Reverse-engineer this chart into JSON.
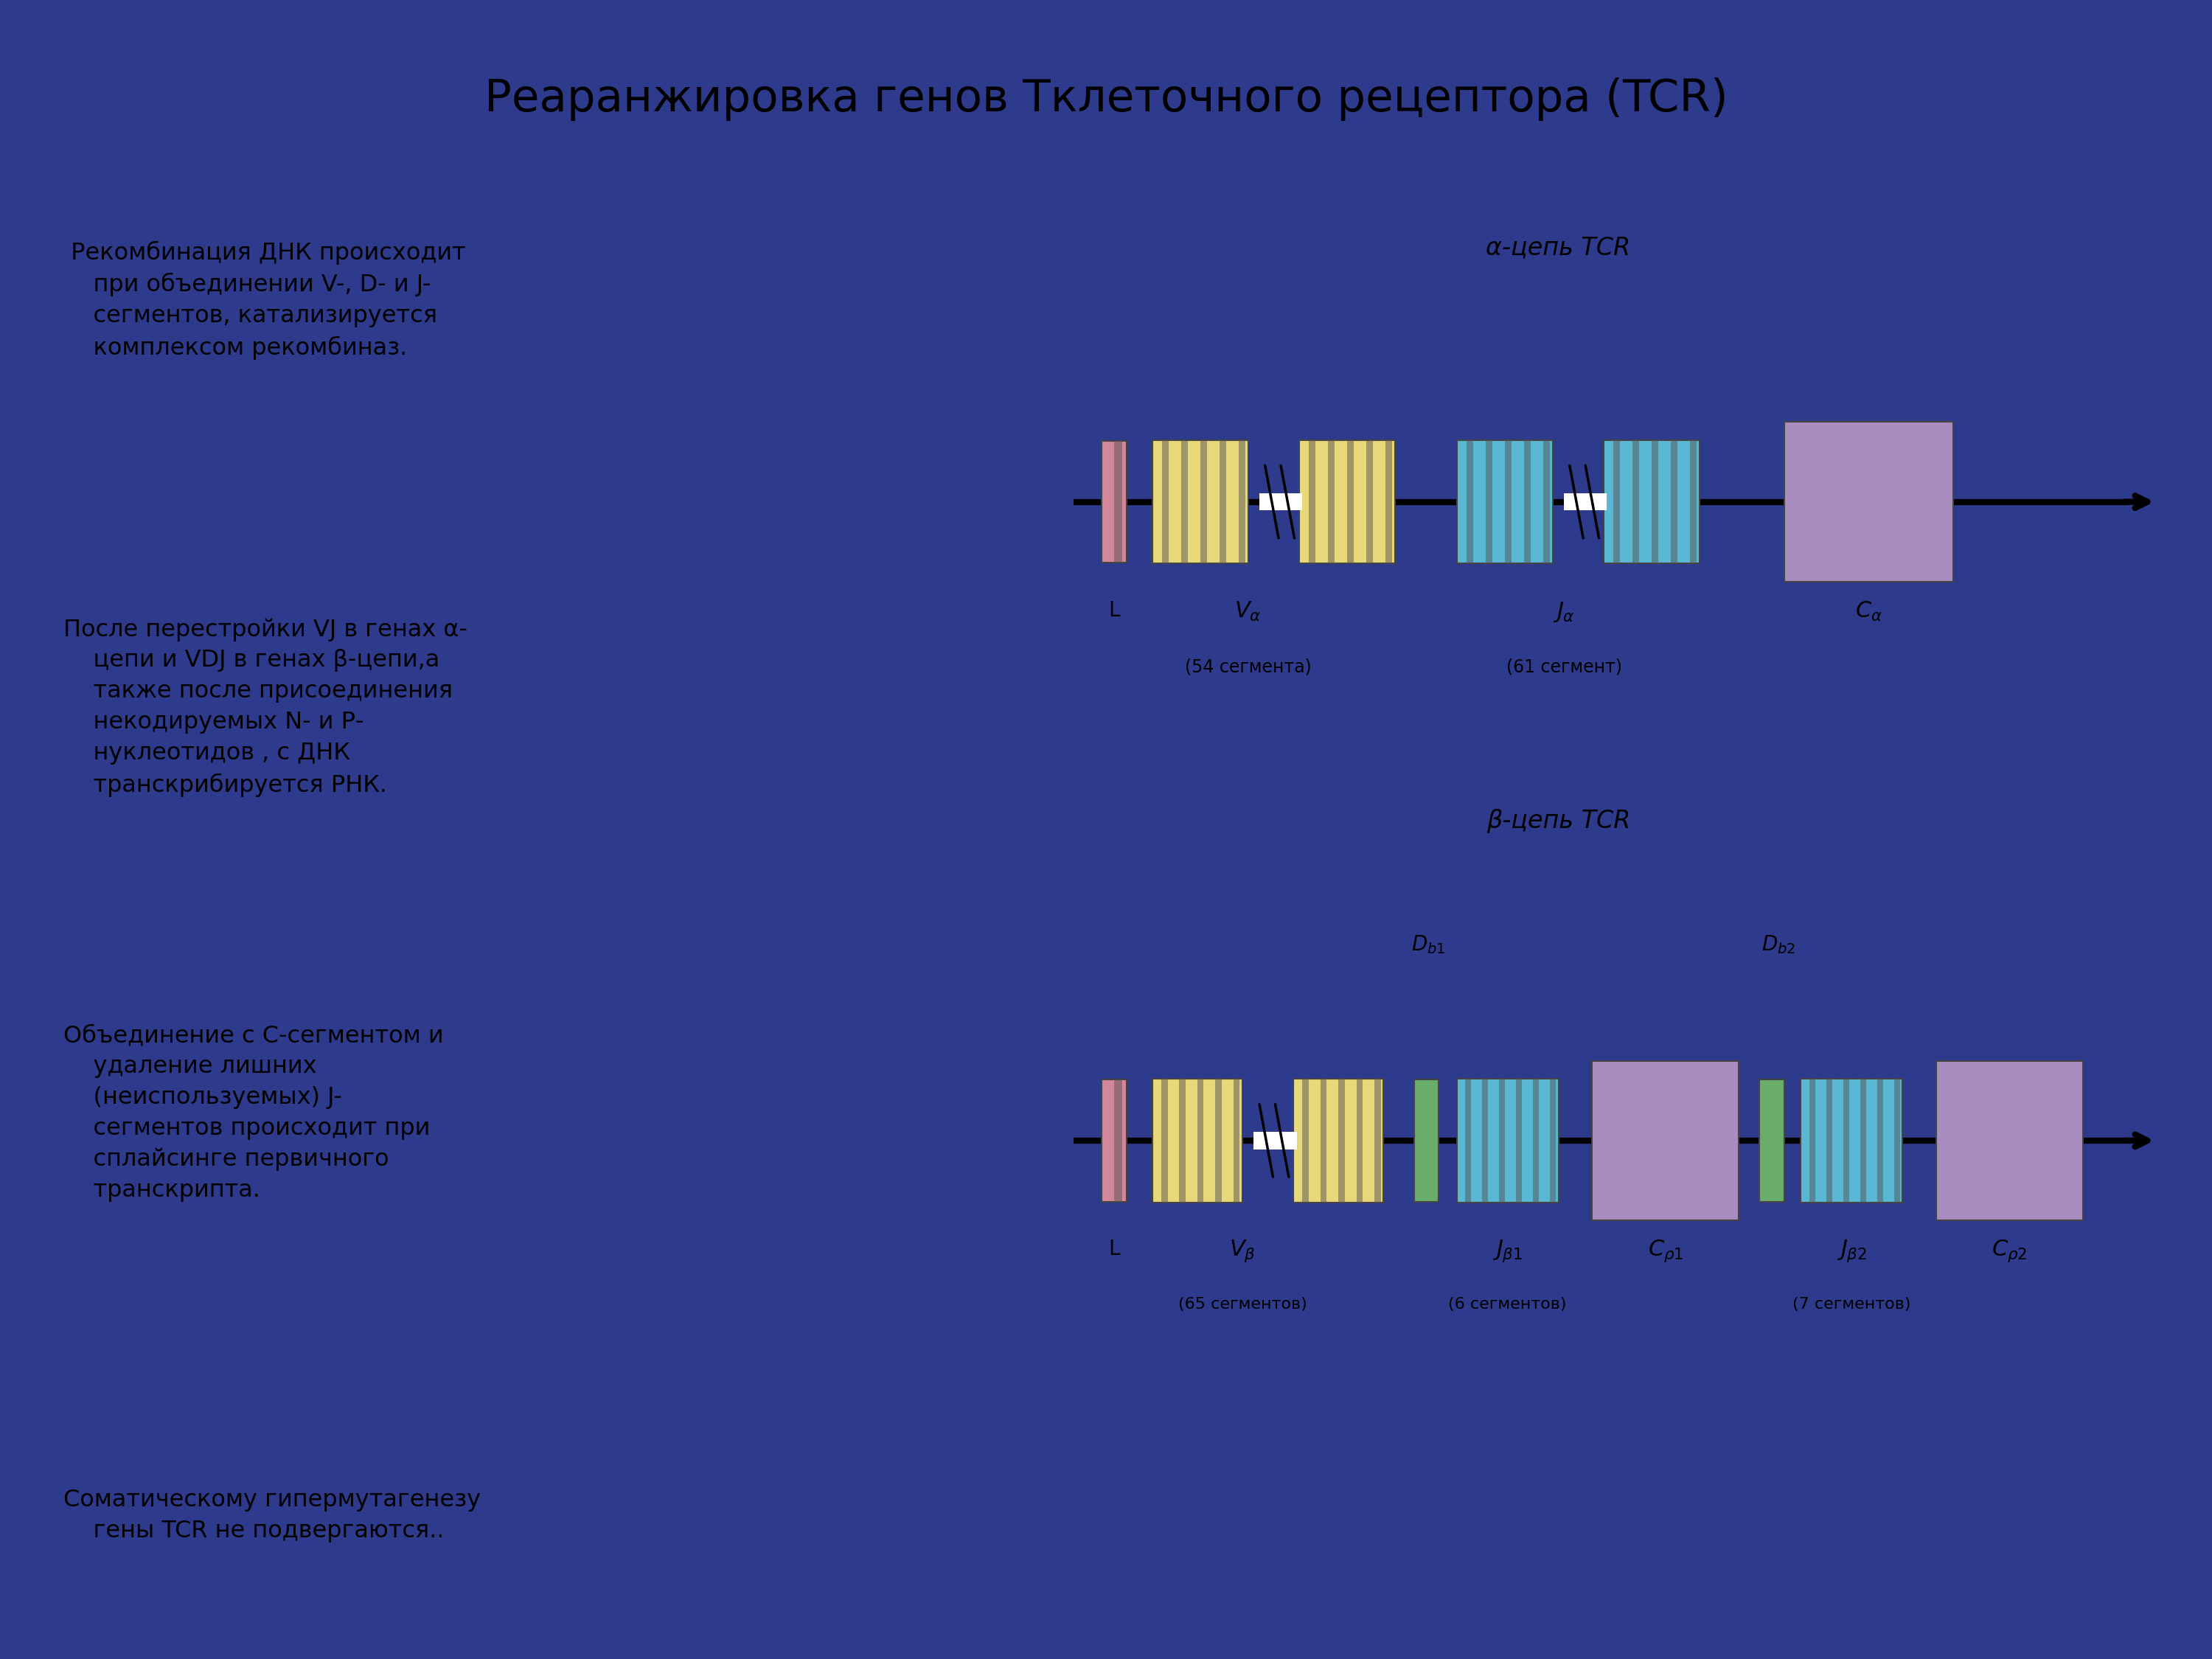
{
  "title": "Реаранжировка генов Тклеточного рецептора (TCR)",
  "title_bg": "#F5B731",
  "title_color": "#000000",
  "bg_color": "#2E3B8C",
  "left_bg": "#F5B731",
  "right_bg": "#FFFFFF",
  "left_text_color": "#000000",
  "left_paragraphs": [
    " Рекомбинация ДНК происходит\n    при объединении V-, D- и J-\n    сегментов, катализируется\n    комплексом рекомбиназ.",
    "После перестройки VJ в генах α-\n    цепи и VDJ в генах β-цепи,а\n    также после присоединения\n    некодируемых N- и Р-\n    нуклеотидов , с ДНК\n    транскрибируется РНК.",
    "Объединение с С-сегментом и\n    удаление лишних\n    (неиспользуемых) J-\n    сегментов происходит при\n    сплайсинге первичного\n    транскрипта.",
    "Соматическому гипермутагенезу\n    гены TCR не подвергаются.."
  ],
  "colors": {
    "L": "#D4879A",
    "V_alpha": "#E8D87A",
    "J_alpha": "#5BB8D4",
    "C_alpha": "#A98DC0",
    "V_beta": "#E8D87A",
    "J_beta1": "#5BB8D4",
    "C_beta1": "#A98DC0",
    "J_beta2": "#5BB8D4",
    "C_beta2": "#A98DC0",
    "D_beta": "#6AAD6A"
  }
}
